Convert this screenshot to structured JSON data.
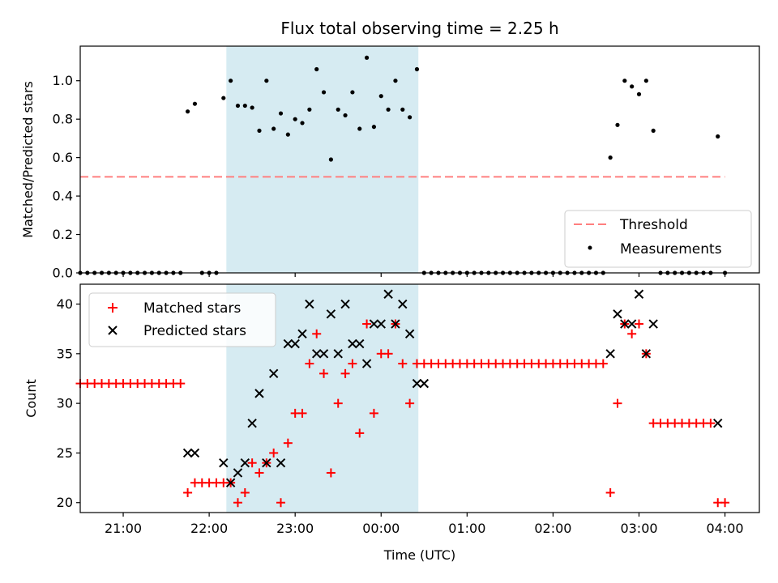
{
  "chart_data": [
    {
      "type": "scatter",
      "title": "Flux total observing time = 2.25 h",
      "xlabel": "",
      "ylabel": "Matched/Predicted stars",
      "ylim": [
        0,
        1.18
      ],
      "yticks": [
        "0.0",
        "0.2",
        "0.4",
        "0.6",
        "0.8",
        "1.0"
      ],
      "xticks": [
        "21:00",
        "22:00",
        "23:00",
        "00:00",
        "01:00",
        "02:00",
        "03:00",
        "04:00"
      ],
      "xlim_hours": [
        20.5,
        4.4
      ],
      "shaded_interval": [
        "22:12",
        "00:26"
      ],
      "threshold": {
        "name": "Threshold",
        "value": 0.5,
        "x_range": [
          "20:30",
          "04:00"
        ],
        "color": "#ff7f7f"
      },
      "legend_position": "lower right",
      "series": [
        {
          "name": "Measurements",
          "color": "#000000",
          "x": [
            "20:30",
            "20:35",
            "20:40",
            "20:45",
            "20:50",
            "20:55",
            "21:00",
            "21:05",
            "21:10",
            "21:15",
            "21:20",
            "21:25",
            "21:30",
            "21:35",
            "21:40",
            "21:45",
            "21:50",
            "21:55",
            "22:00",
            "22:05",
            "22:10",
            "22:15",
            "22:20",
            "22:25",
            "22:30",
            "22:35",
            "22:40",
            "22:45",
            "22:50",
            "22:55",
            "23:00",
            "23:05",
            "23:10",
            "23:15",
            "23:20",
            "23:25",
            "23:30",
            "23:35",
            "23:40",
            "23:45",
            "23:50",
            "23:55",
            "00:00",
            "00:05",
            "00:10",
            "00:15",
            "00:20",
            "00:25",
            "00:30",
            "00:35",
            "00:40",
            "00:45",
            "00:50",
            "00:55",
            "01:00",
            "01:05",
            "01:10",
            "01:15",
            "01:20",
            "01:25",
            "01:30",
            "01:35",
            "01:40",
            "01:45",
            "01:50",
            "01:55",
            "02:00",
            "02:05",
            "02:10",
            "02:15",
            "02:20",
            "02:25",
            "02:30",
            "02:35",
            "02:40",
            "02:45",
            "02:50",
            "02:55",
            "03:00",
            "03:05",
            "03:10",
            "03:15",
            "03:20",
            "03:25",
            "03:30",
            "03:35",
            "03:40",
            "03:45",
            "03:50",
            "03:55",
            "04:00"
          ],
          "y": [
            0,
            0,
            0,
            0,
            0,
            0,
            0,
            0,
            0,
            0,
            0,
            0,
            0,
            0,
            0,
            0.84,
            0.88,
            0,
            0,
            0,
            0.91,
            1.0,
            0.87,
            0.87,
            0.86,
            0.74,
            1.0,
            0.75,
            0.83,
            0.72,
            0.8,
            0.78,
            0.85,
            1.06,
            0.94,
            0.59,
            0.85,
            0.82,
            0.94,
            0.75,
            1.12,
            0.76,
            0.92,
            0.85,
            1.0,
            0.85,
            0.81,
            1.06,
            0,
            0,
            0,
            0,
            0,
            0,
            0,
            0,
            0,
            0,
            0,
            0,
            0,
            0,
            0,
            0,
            0,
            0,
            0,
            0,
            0,
            0,
            0,
            0,
            0,
            0,
            0.6,
            0.77,
            1.0,
            0.97,
            0.93,
            1.0,
            0.74,
            0,
            0,
            0,
            0,
            0,
            0,
            0,
            0,
            0.71,
            0
          ]
        }
      ]
    },
    {
      "type": "scatter",
      "title": "",
      "xlabel": "Time (UTC)",
      "ylabel": "Count",
      "ylim": [
        19,
        42
      ],
      "yticks": [
        "20",
        "25",
        "30",
        "35",
        "40"
      ],
      "xticks": [
        "21:00",
        "22:00",
        "23:00",
        "00:00",
        "01:00",
        "02:00",
        "03:00",
        "04:00"
      ],
      "xlim_hours": [
        20.5,
        4.4
      ],
      "shaded_interval": [
        "22:12",
        "00:26"
      ],
      "legend_position": "upper left",
      "series": [
        {
          "name": "Matched stars",
          "marker": "+",
          "color": "#ff0000",
          "x": [
            "20:30",
            "20:35",
            "20:40",
            "20:45",
            "20:50",
            "20:55",
            "21:00",
            "21:05",
            "21:10",
            "21:15",
            "21:20",
            "21:25",
            "21:30",
            "21:35",
            "21:40",
            "21:45",
            "21:50",
            "21:55",
            "22:00",
            "22:05",
            "22:10",
            "22:15",
            "22:20",
            "22:25",
            "22:30",
            "22:35",
            "22:40",
            "22:45",
            "22:50",
            "22:55",
            "23:00",
            "23:05",
            "23:10",
            "23:15",
            "23:20",
            "23:25",
            "23:30",
            "23:35",
            "23:40",
            "23:45",
            "23:50",
            "23:55",
            "00:00",
            "00:05",
            "00:10",
            "00:15",
            "00:20",
            "00:25",
            "00:30",
            "00:35",
            "00:40",
            "00:45",
            "00:50",
            "00:55",
            "01:00",
            "01:05",
            "01:10",
            "01:15",
            "01:20",
            "01:25",
            "01:30",
            "01:35",
            "01:40",
            "01:45",
            "01:50",
            "01:55",
            "02:00",
            "02:05",
            "02:10",
            "02:15",
            "02:20",
            "02:25",
            "02:30",
            "02:35",
            "02:40",
            "02:45",
            "02:50",
            "02:55",
            "03:00",
            "03:05",
            "03:10",
            "03:15",
            "03:20",
            "03:25",
            "03:30",
            "03:35",
            "03:40",
            "03:45",
            "03:50",
            "03:55",
            "04:00"
          ],
          "y": [
            32,
            32,
            32,
            32,
            32,
            32,
            32,
            32,
            32,
            32,
            32,
            32,
            32,
            32,
            32,
            21,
            22,
            22,
            22,
            22,
            22,
            22,
            20,
            21,
            24,
            23,
            24,
            25,
            20,
            26,
            29,
            29,
            34,
            37,
            33,
            23,
            30,
            33,
            34,
            27,
            38,
            29,
            35,
            35,
            38,
            34,
            30,
            34,
            34,
            34,
            34,
            34,
            34,
            34,
            34,
            34,
            34,
            34,
            34,
            34,
            34,
            34,
            34,
            34,
            34,
            34,
            34,
            34,
            34,
            34,
            34,
            34,
            34,
            34,
            21,
            30,
            38,
            37,
            38,
            35,
            28,
            28,
            28,
            28,
            28,
            28,
            28,
            28,
            28,
            20,
            20
          ]
        },
        {
          "name": "Predicted stars",
          "marker": "x",
          "color": "#000000",
          "x": [
            "21:45",
            "21:50",
            "22:10",
            "22:15",
            "22:20",
            "22:25",
            "22:30",
            "22:35",
            "22:40",
            "22:45",
            "22:50",
            "22:55",
            "23:00",
            "23:05",
            "23:10",
            "23:15",
            "23:20",
            "23:25",
            "23:30",
            "23:35",
            "23:40",
            "23:45",
            "23:50",
            "23:55",
            "00:00",
            "00:05",
            "00:10",
            "00:15",
            "00:20",
            "00:25",
            "00:30",
            "02:40",
            "02:45",
            "02:50",
            "02:55",
            "03:00",
            "03:05",
            "03:10",
            "03:55"
          ],
          "y": [
            25,
            25,
            24,
            22,
            23,
            24,
            28,
            31,
            24,
            33,
            24,
            36,
            36,
            37,
            40,
            35,
            35,
            39,
            35,
            40,
            36,
            36,
            34,
            38,
            38,
            41,
            38,
            40,
            37,
            32,
            32,
            35,
            39,
            38,
            38,
            41,
            35,
            38,
            28
          ]
        }
      ]
    }
  ]
}
